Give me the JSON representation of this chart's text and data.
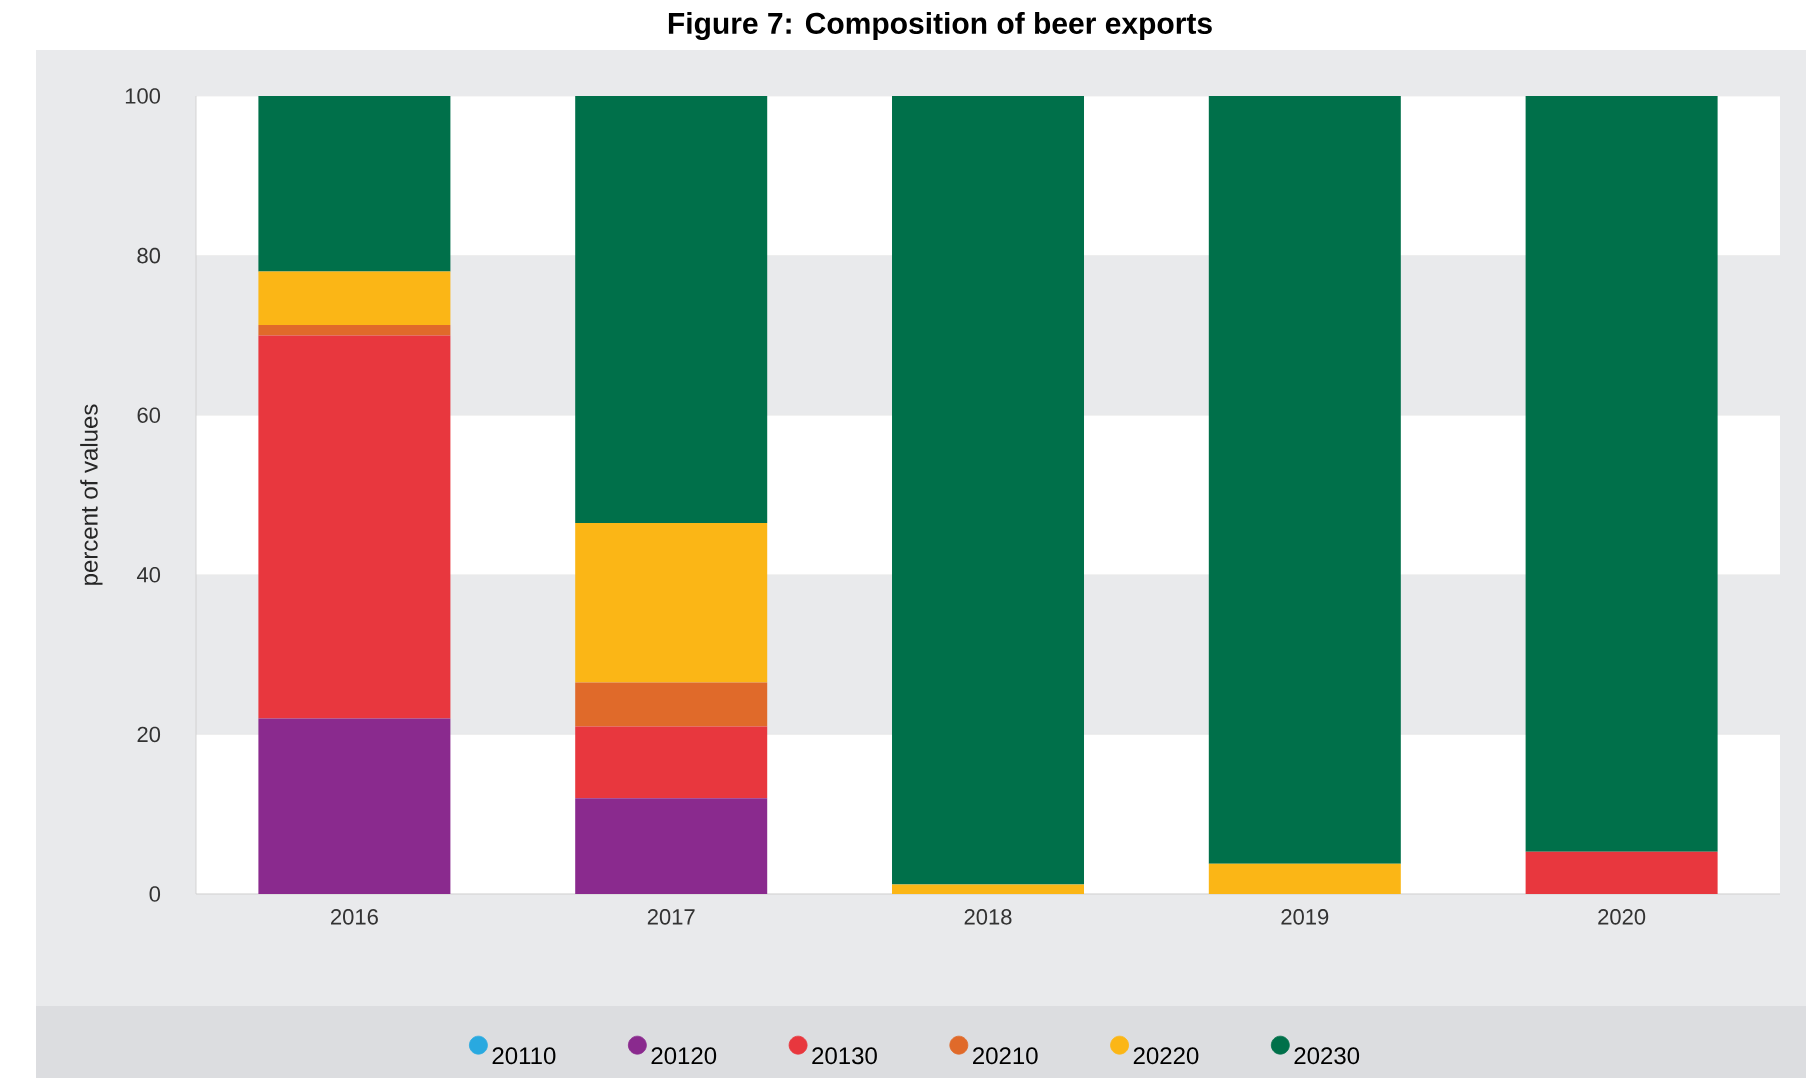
{
  "chart_data": {
    "type": "bar",
    "stacked": true,
    "title": "Figure 7:     Composition of beer exports",
    "ylabel": "percent of values",
    "categories": [
      "2016",
      "2017",
      "2018",
      "2019",
      "2020"
    ],
    "series": [
      {
        "name": "20110",
        "color": "#29a9e0",
        "values": [
          null,
          null,
          null,
          null,
          null
        ]
      },
      {
        "name": "20120",
        "color": "#8a2a8e",
        "values": [
          22,
          12,
          0,
          0,
          0
        ]
      },
      {
        "name": "20130",
        "color": "#e8373e",
        "values": [
          48,
          9,
          0,
          0,
          5.3
        ]
      },
      {
        "name": "20210",
        "color": "#e06a2a",
        "values": [
          1.3,
          5.5,
          0,
          0,
          0
        ]
      },
      {
        "name": "20220",
        "color": "#fbb616",
        "values": [
          6.7,
          20,
          1.2,
          3.8,
          0
        ]
      },
      {
        "name": "20230",
        "color": "#00704a",
        "values": [
          22,
          53.5,
          98.8,
          96.2,
          94.7
        ]
      }
    ],
    "ylim": [
      0,
      100
    ],
    "yticks": [
      0,
      20,
      40,
      60,
      80,
      100
    ],
    "grid": "y",
    "legend": "bottom",
    "marker": "circle"
  }
}
